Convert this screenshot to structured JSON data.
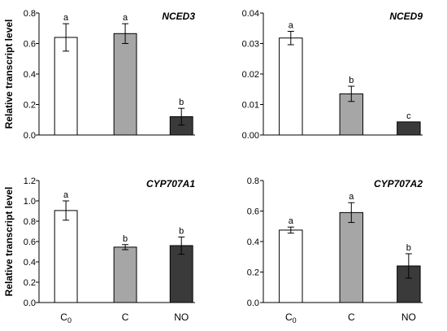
{
  "figure": {
    "ylabel": "Relative transcript level",
    "colors": {
      "C0": "#ffffff",
      "C": "#a6a6a6",
      "NO": "#3a3a3a"
    }
  },
  "chart_data": [
    {
      "type": "bar",
      "title": "NCED3",
      "categories": [
        "C0",
        "C",
        "NO"
      ],
      "values": [
        0.64,
        0.665,
        0.12
      ],
      "errors": [
        0.09,
        0.065,
        0.055
      ],
      "letters": [
        "a",
        "a",
        "b"
      ],
      "ylabel": "Relative transcript level",
      "ylim": [
        0,
        0.8
      ],
      "yticks": [
        "0.0",
        "0.2",
        "0.4",
        "0.6",
        "0.8"
      ]
    },
    {
      "type": "bar",
      "title": "NCED9",
      "categories": [
        "C0",
        "C",
        "NO"
      ],
      "values": [
        0.0318,
        0.0135,
        0.0043
      ],
      "errors": [
        0.0022,
        0.0025,
        0.0
      ],
      "letters": [
        "a",
        "b",
        "c"
      ],
      "ylabel": "",
      "ylim": [
        0,
        0.04
      ],
      "yticks": [
        "0.00",
        "0.01",
        "0.02",
        "0.03",
        "0.04"
      ]
    },
    {
      "type": "bar",
      "title": "CYP707A1",
      "categories": [
        "C0",
        "C",
        "NO"
      ],
      "values": [
        0.905,
        0.545,
        0.56
      ],
      "errors": [
        0.095,
        0.025,
        0.085
      ],
      "letters": [
        "a",
        "b",
        "b"
      ],
      "ylabel": "Relative transcript level",
      "ylim": [
        0,
        1.2
      ],
      "yticks": [
        "0.0",
        "0.2",
        "0.4",
        "0.6",
        "0.8",
        "1.0",
        "1.2"
      ]
    },
    {
      "type": "bar",
      "title": "CYP707A2",
      "categories": [
        "C0",
        "C",
        "NO"
      ],
      "values": [
        0.475,
        0.59,
        0.24
      ],
      "errors": [
        0.02,
        0.065,
        0.08
      ],
      "letters": [
        "a",
        "a",
        "b"
      ],
      "ylabel": "",
      "ylim": [
        0,
        0.8
      ],
      "yticks": [
        "0.0",
        "0.2",
        "0.4",
        "0.6",
        "0.8"
      ]
    }
  ]
}
